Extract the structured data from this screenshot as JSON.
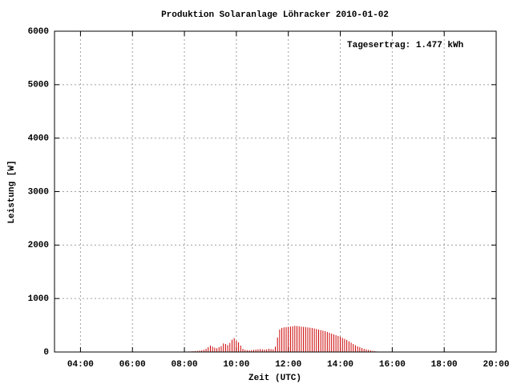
{
  "chart_data": {
    "type": "impulse",
    "title": "Produktion Solaranlage Löhracker 2010-01-02",
    "xlabel": "Zeit (UTC)",
    "ylabel": "Leistung [W]",
    "annotation": "Tagesertrag: 1.477 kWh",
    "color": "#cc0000",
    "grid": true,
    "xlim": [
      "03:00",
      "20:00"
    ],
    "xticks": [
      "04:00",
      "06:00",
      "08:00",
      "10:00",
      "12:00",
      "14:00",
      "16:00",
      "18:00",
      "20:00"
    ],
    "ylim": [
      0,
      6000
    ],
    "yticks": [
      0,
      1000,
      2000,
      3000,
      4000,
      5000,
      6000
    ],
    "x": [
      "08:00",
      "08:05",
      "08:10",
      "08:15",
      "08:20",
      "08:25",
      "08:30",
      "08:35",
      "08:40",
      "08:45",
      "08:50",
      "08:55",
      "09:00",
      "09:05",
      "09:10",
      "09:15",
      "09:20",
      "09:25",
      "09:30",
      "09:35",
      "09:40",
      "09:45",
      "09:50",
      "09:55",
      "10:00",
      "10:05",
      "10:10",
      "10:15",
      "10:20",
      "10:25",
      "10:30",
      "10:35",
      "10:40",
      "10:45",
      "10:50",
      "10:55",
      "11:00",
      "11:05",
      "11:10",
      "11:15",
      "11:20",
      "11:25",
      "11:30",
      "11:35",
      "11:40",
      "11:45",
      "11:50",
      "11:55",
      "12:00",
      "12:05",
      "12:10",
      "12:15",
      "12:20",
      "12:25",
      "12:30",
      "12:35",
      "12:40",
      "12:45",
      "12:50",
      "12:55",
      "13:00",
      "13:05",
      "13:10",
      "13:15",
      "13:20",
      "13:25",
      "13:30",
      "13:35",
      "13:40",
      "13:45",
      "13:50",
      "13:55",
      "14:00",
      "14:05",
      "14:10",
      "14:15",
      "14:20",
      "14:25",
      "14:30",
      "14:35",
      "14:40",
      "14:45",
      "14:50",
      "14:55",
      "15:00",
      "15:05",
      "15:10",
      "15:15",
      "15:20",
      "15:25",
      "15:30"
    ],
    "values": [
      5,
      8,
      10,
      12,
      15,
      18,
      20,
      25,
      30,
      40,
      60,
      90,
      120,
      100,
      80,
      70,
      90,
      110,
      160,
      150,
      130,
      170,
      230,
      260,
      210,
      180,
      120,
      60,
      40,
      35,
      30,
      35,
      40,
      45,
      50,
      55,
      50,
      45,
      50,
      60,
      55,
      50,
      100,
      270,
      420,
      450,
      460,
      465,
      470,
      475,
      480,
      490,
      485,
      480,
      475,
      470,
      465,
      460,
      455,
      450,
      440,
      430,
      420,
      410,
      400,
      390,
      375,
      360,
      345,
      330,
      315,
      300,
      285,
      265,
      245,
      225,
      200,
      175,
      150,
      125,
      105,
      90,
      75,
      60,
      50,
      40,
      30,
      22,
      15,
      10,
      5
    ]
  }
}
